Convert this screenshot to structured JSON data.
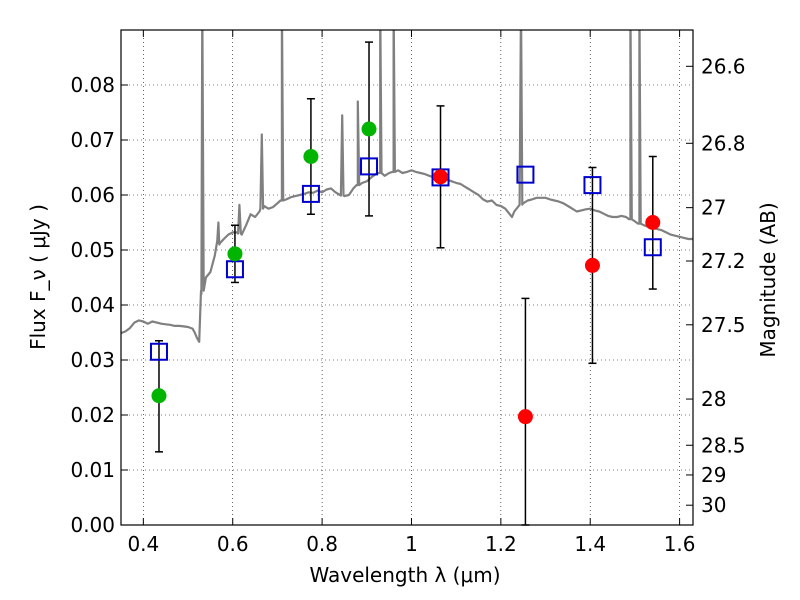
{
  "chart_data": {
    "type": "scatter",
    "xlabel": "Wavelength  λ (μm)",
    "ylabel": "Flux  F_ν  ( μJy )",
    "ylabel_right": "Magnitude (AB)",
    "xlim": [
      0.35,
      1.63
    ],
    "ylim": [
      0.0,
      0.09
    ],
    "grid": true,
    "x_ticks": [
      0.4,
      0.6,
      0.8,
      1.0,
      1.2,
      1.4,
      1.6
    ],
    "x_tick_labels": [
      "0.4",
      "0.6",
      "0.8",
      "1",
      "1.2",
      "1.4",
      "1.6"
    ],
    "y_ticks": [
      0.0,
      0.01,
      0.02,
      0.03,
      0.04,
      0.05,
      0.06,
      0.07,
      0.08
    ],
    "y_tick_labels": [
      "0.00",
      "0.01",
      "0.02",
      "0.03",
      "0.04",
      "0.05",
      "0.06",
      "0.07",
      "0.08"
    ],
    "right_ticks": [
      {
        "label": "26.6",
        "flux": 0.0834
      },
      {
        "label": "26.8",
        "flux": 0.0694
      },
      {
        "label": "27",
        "flux": 0.0577
      },
      {
        "label": "27.2",
        "flux": 0.048
      },
      {
        "label": "27.5",
        "flux": 0.0364
      },
      {
        "label": "28",
        "flux": 0.0229
      },
      {
        "label": "28.5",
        "flux": 0.0145
      },
      {
        "label": "29",
        "flux": 0.0091
      },
      {
        "label": "30",
        "flux": 0.0036
      }
    ],
    "series": [
      {
        "marker": "open-square",
        "color": "#0000cc",
        "points": [
          {
            "x": 0.435,
            "y": 0.0315
          },
          {
            "x": 0.605,
            "y": 0.0465
          },
          {
            "x": 0.775,
            "y": 0.0602
          },
          {
            "x": 0.905,
            "y": 0.0652
          },
          {
            "x": 1.065,
            "y": 0.0632
          },
          {
            "x": 1.255,
            "y": 0.0637
          },
          {
            "x": 1.405,
            "y": 0.0618
          },
          {
            "x": 1.54,
            "y": 0.0505
          }
        ]
      },
      {
        "marker": "filled-circle",
        "color": "#00b400",
        "points": [
          {
            "x": 0.435,
            "y": 0.0235,
            "ylo": 0.0133,
            "yhi": 0.0335
          },
          {
            "x": 0.605,
            "y": 0.0493,
            "ylo": 0.0441,
            "yhi": 0.0545
          },
          {
            "x": 0.775,
            "y": 0.067,
            "ylo": 0.0565,
            "yhi": 0.0775
          },
          {
            "x": 0.905,
            "y": 0.072,
            "ylo": 0.0562,
            "yhi": 0.0878
          }
        ]
      },
      {
        "marker": "filled-circle",
        "color": "#ff0000",
        "points": [
          {
            "x": 1.065,
            "y": 0.0633,
            "ylo": 0.0504,
            "yhi": 0.0762
          },
          {
            "x": 1.255,
            "y": 0.0197,
            "ylo": 0.0,
            "yhi": 0.0412
          },
          {
            "x": 1.405,
            "y": 0.0472,
            "ylo": 0.0294,
            "yhi": 0.065
          },
          {
            "x": 1.54,
            "y": 0.055,
            "ylo": 0.0429,
            "yhi": 0.067
          }
        ]
      }
    ],
    "spectrum": {
      "color": "#808080",
      "points": [
        [
          0.35,
          0.0349
        ],
        [
          0.36,
          0.0352
        ],
        [
          0.37,
          0.0358
        ],
        [
          0.38,
          0.0368
        ],
        [
          0.39,
          0.0372
        ],
        [
          0.4,
          0.037
        ],
        [
          0.41,
          0.0366
        ],
        [
          0.42,
          0.037
        ],
        [
          0.43,
          0.0368
        ],
        [
          0.44,
          0.0366
        ],
        [
          0.45,
          0.0365
        ],
        [
          0.46,
          0.0364
        ],
        [
          0.47,
          0.0362
        ],
        [
          0.48,
          0.0362
        ],
        [
          0.49,
          0.0361
        ],
        [
          0.5,
          0.036
        ],
        [
          0.51,
          0.0357
        ],
        [
          0.515,
          0.035
        ],
        [
          0.52,
          0.034
        ],
        [
          0.525,
          0.0333
        ],
        [
          0.53,
          0.042
        ],
        [
          0.54,
          0.045
        ],
        [
          0.55,
          0.046
        ],
        [
          0.56,
          0.049
        ],
        [
          0.565,
          0.0515
        ],
        [
          0.57,
          0.051
        ],
        [
          0.58,
          0.052
        ],
        [
          0.59,
          0.0528
        ],
        [
          0.6,
          0.0532
        ],
        [
          0.61,
          0.0532
        ],
        [
          0.62,
          0.0528
        ],
        [
          0.63,
          0.0545
        ],
        [
          0.64,
          0.0565
        ],
        [
          0.65,
          0.056
        ],
        [
          0.66,
          0.057
        ],
        [
          0.67,
          0.058
        ],
        [
          0.68,
          0.0575
        ],
        [
          0.69,
          0.0578
        ],
        [
          0.7,
          0.0585
        ],
        [
          0.71,
          0.059
        ],
        [
          0.72,
          0.0592
        ],
        [
          0.73,
          0.0596
        ],
        [
          0.74,
          0.0598
        ],
        [
          0.75,
          0.06
        ],
        [
          0.76,
          0.0602
        ],
        [
          0.77,
          0.0605
        ],
        [
          0.78,
          0.0604
        ],
        [
          0.79,
          0.0608
        ],
        [
          0.8,
          0.0605
        ],
        [
          0.81,
          0.061
        ],
        [
          0.82,
          0.0612
        ],
        [
          0.83,
          0.0605
        ],
        [
          0.84,
          0.06
        ],
        [
          0.85,
          0.0598
        ],
        [
          0.86,
          0.06
        ],
        [
          0.87,
          0.0612
        ],
        [
          0.88,
          0.0618
        ],
        [
          0.89,
          0.0622
        ],
        [
          0.9,
          0.0625
        ],
        [
          0.91,
          0.0632
        ],
        [
          0.92,
          0.0638
        ],
        [
          0.93,
          0.064
        ],
        [
          0.94,
          0.0635
        ],
        [
          0.95,
          0.064
        ],
        [
          0.96,
          0.0642
        ],
        [
          0.97,
          0.0645
        ],
        [
          0.98,
          0.064
        ],
        [
          0.99,
          0.0642
        ],
        [
          1.0,
          0.0645
        ],
        [
          1.01,
          0.0642
        ],
        [
          1.02,
          0.064
        ],
        [
          1.03,
          0.0638
        ],
        [
          1.04,
          0.0635
        ],
        [
          1.05,
          0.0632
        ],
        [
          1.06,
          0.063
        ],
        [
          1.07,
          0.063
        ],
        [
          1.08,
          0.0628
        ],
        [
          1.09,
          0.0625
        ],
        [
          1.1,
          0.0622
        ],
        [
          1.11,
          0.062
        ],
        [
          1.12,
          0.0615
        ],
        [
          1.13,
          0.061
        ],
        [
          1.14,
          0.0605
        ],
        [
          1.15,
          0.06
        ],
        [
          1.16,
          0.0592
        ],
        [
          1.17,
          0.0588
        ],
        [
          1.18,
          0.059
        ],
        [
          1.19,
          0.0582
        ],
        [
          1.2,
          0.058
        ],
        [
          1.21,
          0.0575
        ],
        [
          1.22,
          0.0565
        ],
        [
          1.225,
          0.056
        ],
        [
          1.23,
          0.057
        ],
        [
          1.24,
          0.058
        ],
        [
          1.25,
          0.0585
        ],
        [
          1.26,
          0.059
        ],
        [
          1.27,
          0.0592
        ],
        [
          1.28,
          0.0595
        ],
        [
          1.29,
          0.0595
        ],
        [
          1.3,
          0.0595
        ],
        [
          1.31,
          0.0592
        ],
        [
          1.32,
          0.059
        ],
        [
          1.33,
          0.0588
        ],
        [
          1.34,
          0.0585
        ],
        [
          1.35,
          0.058
        ],
        [
          1.36,
          0.0575
        ],
        [
          1.37,
          0.057
        ],
        [
          1.38,
          0.0572
        ],
        [
          1.39,
          0.0574
        ],
        [
          1.4,
          0.0575
        ],
        [
          1.41,
          0.0572
        ],
        [
          1.42,
          0.057
        ],
        [
          1.43,
          0.0566
        ],
        [
          1.44,
          0.0562
        ],
        [
          1.45,
          0.056
        ],
        [
          1.46,
          0.056
        ],
        [
          1.47,
          0.0562
        ],
        [
          1.48,
          0.056
        ],
        [
          1.49,
          0.0556
        ],
        [
          1.5,
          0.0552
        ],
        [
          1.51,
          0.0548
        ],
        [
          1.52,
          0.0545
        ],
        [
          1.53,
          0.0542
        ],
        [
          1.54,
          0.054
        ],
        [
          1.55,
          0.0538
        ],
        [
          1.56,
          0.0536
        ],
        [
          1.57,
          0.0532
        ],
        [
          1.58,
          0.0528
        ],
        [
          1.59,
          0.0526
        ],
        [
          1.6,
          0.0524
        ],
        [
          1.61,
          0.0522
        ],
        [
          1.62,
          0.052
        ],
        [
          1.63,
          0.052
        ]
      ],
      "emission_lines": [
        {
          "x": 0.532,
          "peak": 0.095
        },
        {
          "x": 0.568,
          "peak": 0.055
        },
        {
          "x": 0.615,
          "peak": 0.0582
        },
        {
          "x": 0.665,
          "peak": 0.071
        },
        {
          "x": 0.71,
          "peak": 0.095
        },
        {
          "x": 0.845,
          "peak": 0.0745
        },
        {
          "x": 0.88,
          "peak": 0.077
        },
        {
          "x": 0.93,
          "peak": 0.095
        },
        {
          "x": 0.96,
          "peak": 0.095
        },
        {
          "x": 1.245,
          "peak": 0.095
        },
        {
          "x": 1.49,
          "peak": 0.095
        },
        {
          "x": 1.51,
          "peak": 0.095
        }
      ]
    }
  }
}
